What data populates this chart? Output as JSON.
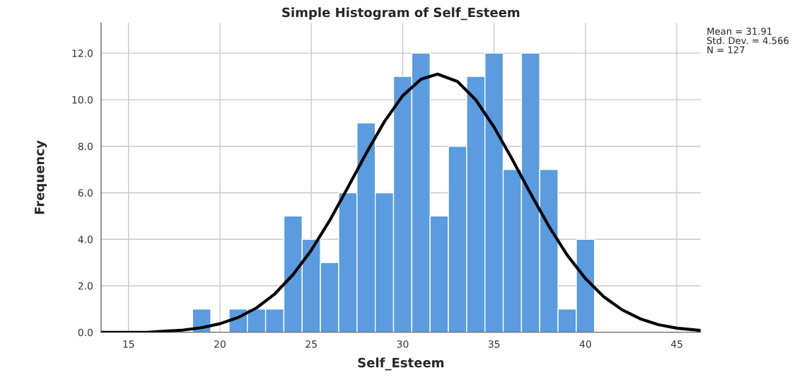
{
  "chart_data": {
    "type": "histogram",
    "title": "Simple Histogram of Self_Esteem",
    "xlabel": "Self_Esteem",
    "ylabel": "Frequency",
    "bins": [
      18.5,
      19.5,
      20.5,
      21.5,
      22.5,
      23.5,
      24.5,
      25.5,
      26.5,
      27.5,
      28.5,
      29.5,
      30.5,
      31.5,
      32.5,
      33.5,
      34.5,
      35.5,
      36.5,
      37.5,
      38.5,
      39.5,
      40.5
    ],
    "values": [
      1,
      0,
      1,
      1,
      1,
      5,
      4,
      3,
      6,
      9,
      6,
      11,
      12,
      5,
      8,
      11,
      12,
      7,
      12,
      7,
      1,
      4
    ],
    "color": "#5b9be0",
    "series": [
      {
        "type": "line",
        "color": "#000000",
        "x": [
          13.5,
          15,
          16,
          17,
          18,
          19,
          20,
          21,
          22,
          23,
          24,
          25,
          26,
          27,
          28,
          29,
          30,
          31,
          31.91,
          33,
          34,
          35,
          36,
          37,
          38,
          39,
          40,
          41,
          42,
          43,
          44,
          45,
          46.3
        ],
        "values": [
          0,
          0,
          0,
          0.05,
          0.1,
          0.2,
          0.37,
          0.64,
          1.05,
          1.65,
          2.48,
          3.53,
          4.8,
          6.23,
          7.69,
          9.06,
          10.17,
          10.88,
          11.1,
          10.78,
          9.99,
          8.82,
          7.43,
          5.96,
          4.56,
          3.32,
          2.31,
          1.53,
          0.97,
          0.58,
          0.33,
          0.18,
          0.08
        ]
      }
    ],
    "annotations": [
      "Mean = 31.91",
      "Std. Dev. = 4.566",
      "N = 127"
    ],
    "xlim": [
      13.5,
      46.3
    ],
    "xticks": [
      15,
      20,
      25,
      30,
      35,
      40,
      45
    ],
    "ylim": [
      0,
      13.3
    ],
    "yticks": [
      {
        "value": 0,
        "label": "0.0"
      },
      {
        "value": 2,
        "label": "2.0"
      },
      {
        "value": 4,
        "label": "4.0"
      },
      {
        "value": 6,
        "label": "6.0"
      },
      {
        "value": 8,
        "label": "8.0"
      },
      {
        "value": 10,
        "label": "10.0"
      },
      {
        "value": 12,
        "label": "12.0"
      }
    ],
    "grid": true
  }
}
